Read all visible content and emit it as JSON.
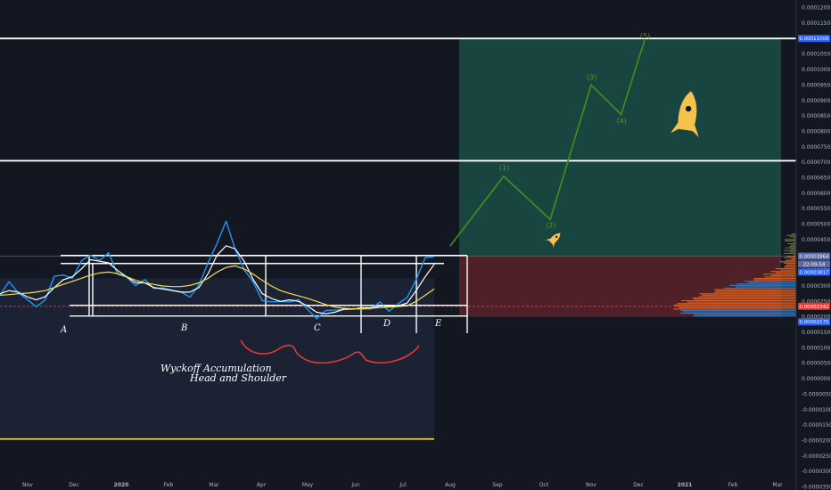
{
  "chart_data": {
    "type": "line",
    "x_axis_labels": [
      "Nov",
      "Dec",
      "2020",
      "Feb",
      "Mar",
      "Apr",
      "May",
      "Jun",
      "Jul",
      "Aug",
      "Sep",
      "Oct",
      "Nov",
      "Dec",
      "2021",
      "Feb",
      "Mar"
    ],
    "y_axis_labels": [
      "0.00012000",
      "0.00011500",
      "0.00011000",
      "0.00010500",
      "0.00010000",
      "0.00009500",
      "0.00009000",
      "0.00008500",
      "0.00008000",
      "0.00007500",
      "0.00007000",
      "0.00006500",
      "0.00006000",
      "0.00005500",
      "0.00005000",
      "0.00004500",
      "0.00004000",
      "0.00003500",
      "0.00003000",
      "0.00002500",
      "0.00002000",
      "0.00001500",
      "0.00001000",
      "0.00000500",
      "0.00000000",
      "-0.00000500",
      "-0.00001000",
      "-0.00001500",
      "-0.00002000",
      "-0.00002500",
      "-0.00003000",
      "-0.00003500"
    ],
    "ylim": [
      -3.6e-05,
      0.0001225
    ],
    "price_tags": [
      {
        "label": "0.00011006",
        "value": 0.00011006,
        "bg": "#2962ff",
        "fg": "#ffffff"
      },
      {
        "label": "0.00003964",
        "value": 3.964e-05,
        "bg": "#5b6aa6",
        "fg": "#ffffff"
      },
      {
        "label": "22:09:54",
        "value": 3.71e-05,
        "bg": "#5b6aa6",
        "fg": "#ffffff"
      },
      {
        "label": "0.00003817",
        "value": 3.45e-05,
        "bg": "#2962ff",
        "fg": "#ffffff"
      },
      {
        "label": "0.00002342",
        "value": 2.342e-05,
        "bg": "#e53935",
        "fg": "#ffffff"
      },
      {
        "label": "0.00002175",
        "value": 1.84e-05,
        "bg": "#2962ff",
        "fg": "#ffffff"
      }
    ],
    "phase_labels": [
      "A",
      "B",
      "C",
      "D",
      "E"
    ],
    "wave_labels": [
      "(1)",
      "(2)",
      "(3)",
      "(4)",
      "(5)"
    ],
    "annotation_lines": [
      "Wyckoff Accumulation",
      "Head and Shoulder"
    ],
    "horizontal_levels": [
      {
        "value": 0.00011006,
        "color": "#ffffff"
      },
      {
        "value": 7.05e-05,
        "color": "#ffffff"
      },
      {
        "value": 2.342e-05,
        "color": "#e53935",
        "dashed": true
      },
      {
        "value": -1.95e-05,
        "color": "#f2d22e"
      }
    ],
    "target_zone": {
      "top": 0.00011006,
      "bottom": 3.964e-05,
      "color": "#1b4d46"
    },
    "stop_zone": {
      "top": 3.964e-05,
      "bottom": 2e-05,
      "color": "#5a2228"
    },
    "range_box": {
      "top": 3.9e-05,
      "bottom": 2e-05
    },
    "elliott_path": [
      {
        "date": "2020-08-01",
        "value": 4.3e-05
      },
      {
        "date": "2020-09-05",
        "value": 6.55e-05,
        "label": "(1)"
      },
      {
        "date": "2020-10-05",
        "value": 5.15e-05,
        "label": "(2)"
      },
      {
        "date": "2020-11-01",
        "value": 9.5e-05,
        "label": "(3)"
      },
      {
        "date": "2020-11-20",
        "value": 8.55e-05,
        "label": "(4)"
      },
      {
        "date": "2020-12-05",
        "value": 0.0001095,
        "label": "(5)"
      }
    ],
    "series": [
      {
        "color": "#2196f3",
        "values": [
          2.7e-05,
          3.05e-05,
          2.9e-05,
          2.5e-05,
          2.3e-05,
          2.65e-05,
          3.2e-05,
          3.4e-05,
          3.3e-05,
          3.7e-05,
          4.1e-05,
          3.8e-05,
          4e-05,
          3.5e-05,
          3.2e-05,
          3e-05,
          3.3e-05,
          2.8e-05,
          3e-05,
          2.9e-05,
          2.7e-05,
          2.75e-05,
          3e-05,
          3.7e-05,
          4.5e-05,
          5e-05,
          4.2e-05,
          3.6e-05,
          3e-05,
          2.6e-05,
          2.5e-05,
          2.4e-05,
          2.6e-05,
          2.5e-05,
          2.2e-05,
          2.05e-05,
          2.1e-05,
          2.25e-05,
          2.3e-05,
          2.15e-05,
          2.35e-05,
          2.25e-05,
          2.4e-05,
          2.3e-05,
          2.35e-05,
          2.6e-05,
          3.3e-05,
          3.8e-05,
          4e-05
        ]
      },
      {
        "color": "#ffffff",
        "values": [
          2.75e-05,
          2.85e-05,
          2.8e-05,
          2.65e-05,
          2.55e-05,
          2.65e-05,
          2.95e-05,
          3.2e-05,
          3.3e-05,
          3.55e-05,
          3.85e-05,
          3.8e-05,
          3.75e-05,
          3.5e-05,
          3.3e-05,
          3.1e-05,
          3.1e-05,
          2.95e-05,
          2.9e-05,
          2.85e-05,
          2.8e-05,
          2.8e-05,
          2.95e-05,
          3.4e-05,
          4e-05,
          4.3e-05,
          4.2e-05,
          3.8e-05,
          3.2e-05,
          2.75e-05,
          2.6e-05,
          2.5e-05,
          2.55e-05,
          2.5e-05,
          2.35e-05,
          2.15e-05,
          2.1e-05,
          2.15e-05,
          2.25e-05,
          2.25e-05,
          2.3e-05,
          2.3e-05,
          2.35e-05,
          2.35e-05,
          2.35e-05,
          2.45e-05,
          2.85e-05,
          3.3e-05,
          3.7e-05
        ]
      },
      {
        "color": "#f4e04d",
        "values": [
          2.7e-05,
          2.72e-05,
          2.75e-05,
          2.77e-05,
          2.8e-05,
          2.85e-05,
          2.95e-05,
          3.05e-05,
          3.15e-05,
          3.25e-05,
          3.35e-05,
          3.42e-05,
          3.45e-05,
          3.4e-05,
          3.3e-05,
          3.18e-05,
          3.1e-05,
          3.05e-05,
          3e-05,
          2.98e-05,
          2.98e-05,
          3.02e-05,
          3.1e-05,
          3.25e-05,
          3.45e-05,
          3.6e-05,
          3.65e-05,
          3.55e-05,
          3.38e-05,
          3.18e-05,
          3e-05,
          2.85e-05,
          2.76e-05,
          2.68e-05,
          2.6e-05,
          2.5e-05,
          2.4e-05,
          2.32e-05,
          2.28e-05,
          2.26e-05,
          2.26e-05,
          2.28e-05,
          2.3e-05,
          2.32e-05,
          2.33e-05,
          2.36e-05,
          2.5e-05,
          2.7e-05,
          2.9e-05
        ]
      }
    ]
  }
}
